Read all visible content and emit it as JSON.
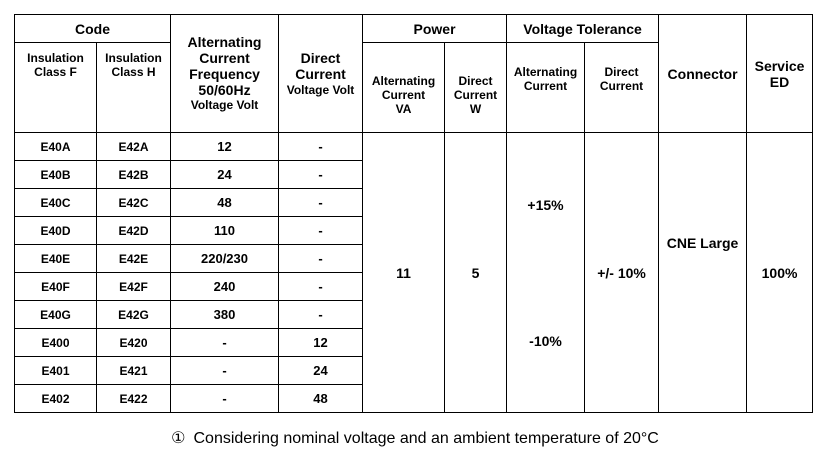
{
  "header": {
    "code": "Code",
    "class_f": "Insulation Class F",
    "class_h": "Insulation Class H",
    "ac_voltage": [
      "Alternating",
      "Current",
      "Frequency",
      "50/60Hz",
      "Voltage Volt"
    ],
    "dc_voltage": [
      "Direct",
      "Current",
      "Voltage Volt"
    ],
    "power": "Power",
    "power_ac": [
      "Alternating",
      "Current",
      "VA"
    ],
    "power_dc": [
      "Direct",
      "Current",
      "W"
    ],
    "tolerance": "Voltage Tolerance",
    "tol_ac": [
      "Alternating",
      "Current"
    ],
    "tol_dc": [
      "Direct",
      "Current"
    ],
    "connector": "Connector",
    "service": [
      "Service",
      "ED"
    ]
  },
  "rows": [
    {
      "f": "E40A",
      "h": "E42A",
      "ac": "12",
      "dc": "-"
    },
    {
      "f": "E40B",
      "h": "E42B",
      "ac": "24",
      "dc": "-"
    },
    {
      "f": "E40C",
      "h": "E42C",
      "ac": "48",
      "dc": "-"
    },
    {
      "f": "E40D",
      "h": "E42D",
      "ac": "110",
      "dc": "-"
    },
    {
      "f": "E40E",
      "h": "E42E",
      "ac": "220/230",
      "dc": "-"
    },
    {
      "f": "E40F",
      "h": "E42F",
      "ac": "240",
      "dc": "-"
    },
    {
      "f": "E40G",
      "h": "E42G",
      "ac": "380",
      "dc": "-"
    },
    {
      "f": "E400",
      "h": "E420",
      "ac": "-",
      "dc": "12"
    },
    {
      "f": "E401",
      "h": "E421",
      "ac": "-",
      "dc": "24"
    },
    {
      "f": "E402",
      "h": "E422",
      "ac": "-",
      "dc": "48"
    }
  ],
  "merged": {
    "power_ac": "11",
    "power_dc": "5",
    "tol_ac_plus": "+15%",
    "tol_ac_minus": "-10%",
    "tol_dc": "+/- 10%",
    "connector": "CNE Large",
    "service": "100%"
  },
  "note": {
    "marker": "①",
    "text": "Considering nominal voltage and an ambient temperature of 20°C"
  }
}
